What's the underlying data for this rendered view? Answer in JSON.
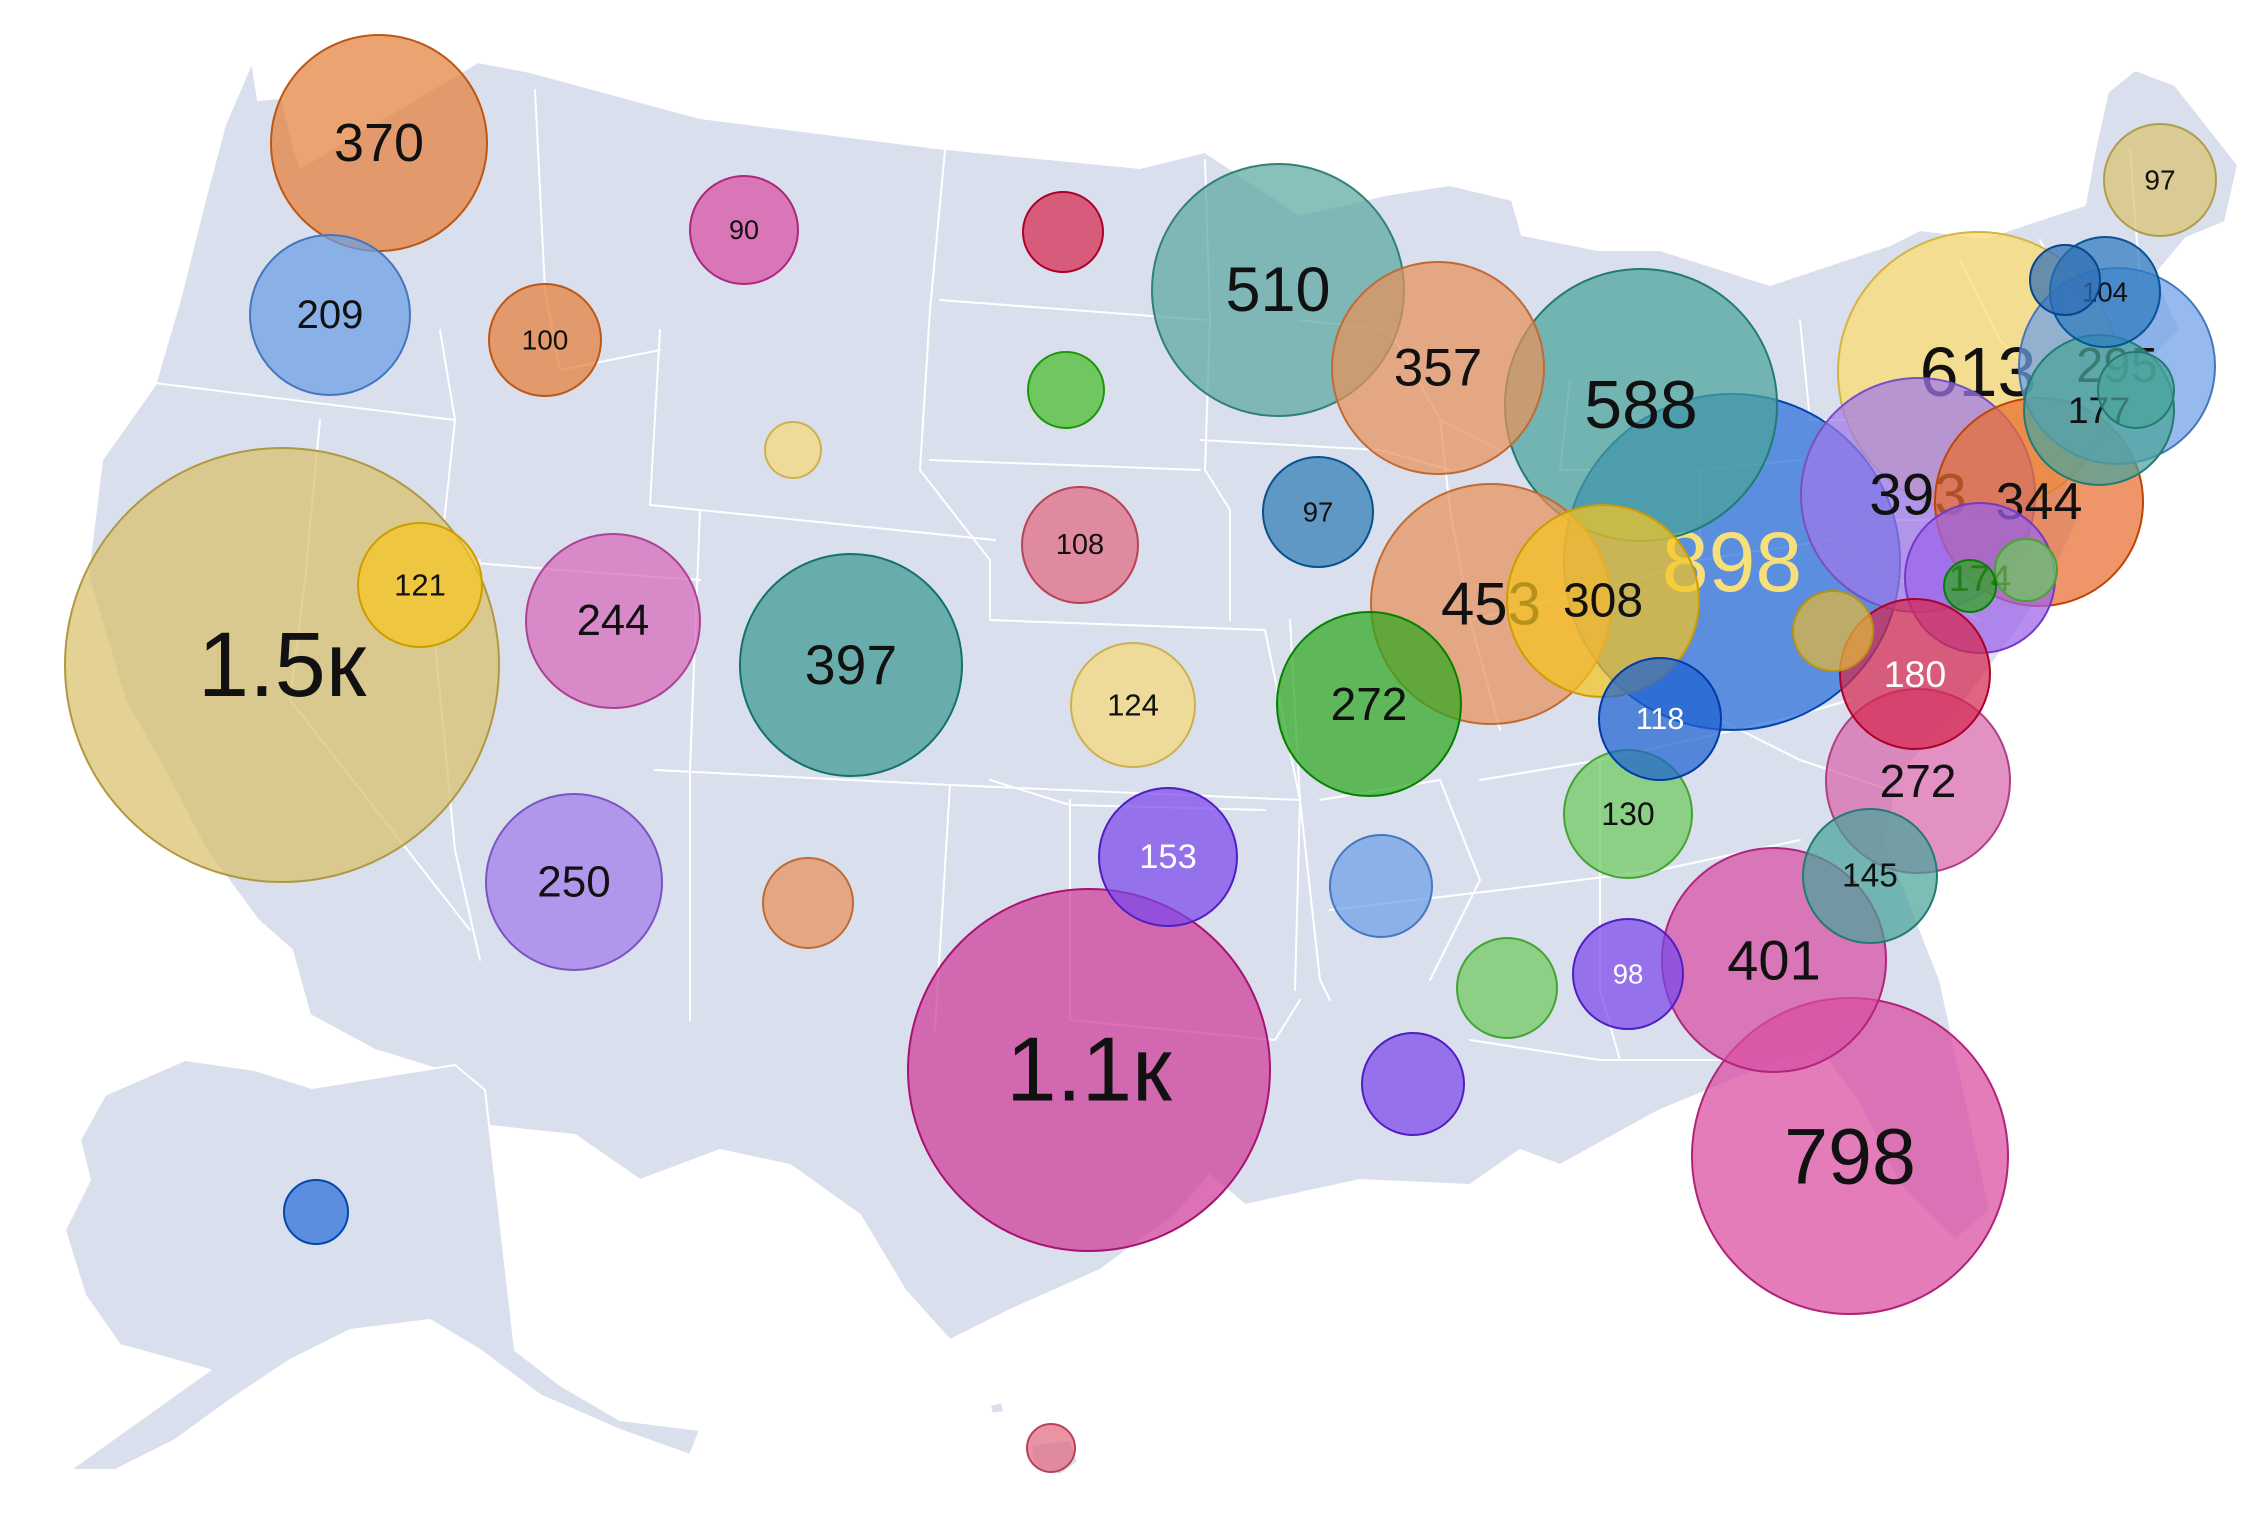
{
  "map": {
    "type": "proportional-symbol",
    "region": "United States",
    "basemap_color": "#d9dfec",
    "border_color": "#ffffff",
    "label_rule": "bubbles labeled only when large enough"
  },
  "bubbles": [
    {
      "state": "WA",
      "label": "370",
      "color": "#e57f3c"
    },
    {
      "state": "OR",
      "label": "209",
      "color": "#6b9ee6"
    },
    {
      "state": "ID",
      "label": "100",
      "color": "#e57f3c"
    },
    {
      "state": "MT",
      "label": "90",
      "color": "#d84ea4"
    },
    {
      "state": "ND",
      "label": "",
      "color": "#d6284f"
    },
    {
      "state": "MN",
      "label": "510",
      "color": "#5aa8a0"
    },
    {
      "state": "SD",
      "label": "",
      "color": "#46be2c"
    },
    {
      "state": "WY",
      "label": "",
      "color": "#f5d978"
    },
    {
      "state": "WI",
      "label": "357",
      "color": "#e8925c"
    },
    {
      "state": "MI",
      "label": "588",
      "color": "#4aa39a"
    },
    {
      "state": "ME",
      "label": "97",
      "color": "#d9c472"
    },
    {
      "state": "NY",
      "label": "613",
      "color": "#fbdc6e"
    },
    {
      "state": "VT",
      "label": "",
      "color": "#2f6fb6"
    },
    {
      "state": "NH",
      "label": "104",
      "color": "#2f7bbf"
    },
    {
      "state": "MA",
      "label": "295",
      "color": "#6d9fe6"
    },
    {
      "state": "CT",
      "label": "177",
      "color": "#4aa39a"
    },
    {
      "state": "RI",
      "label": "",
      "color": "#4aa39a"
    },
    {
      "state": "IA",
      "label": "97",
      "color": "#2f7bb5"
    },
    {
      "state": "NE",
      "label": "108",
      "color": "#e06a80"
    },
    {
      "state": "CA",
      "label": "1.5к",
      "color": "#d8c06a"
    },
    {
      "state": "NV",
      "label": "121",
      "color": "#f5c521"
    },
    {
      "state": "UT",
      "label": "244",
      "color": "#d66ab9"
    },
    {
      "state": "CO",
      "label": "397",
      "color": "#3c9a92"
    },
    {
      "state": "KS",
      "label": "124",
      "color": "#f5d978"
    },
    {
      "state": "IL",
      "label": "453",
      "color": "#e8925c"
    },
    {
      "state": "IN",
      "label": "308",
      "color": "#f5c521"
    },
    {
      "state": "OH",
      "label": "898",
      "color": "#2a6fd8"
    },
    {
      "state": "PA",
      "label": "393",
      "color": "#a078ea"
    },
    {
      "state": "NJ",
      "label": "344",
      "color": "#e86c30"
    },
    {
      "state": "DE",
      "label": "174",
      "color": "#9b62ea"
    },
    {
      "state": "MD",
      "label": "",
      "color": "#2ea820"
    },
    {
      "state": "DC",
      "label": "",
      "color": "#6ccb5c"
    },
    {
      "state": "WV",
      "label": "",
      "color": "#e2b93a"
    },
    {
      "state": "VA",
      "label": "180",
      "color": "#d6284f"
    },
    {
      "state": "MO",
      "label": "272",
      "color": "#2ea820"
    },
    {
      "state": "KY",
      "label": "118",
      "color": "#1e63d0"
    },
    {
      "state": "TN",
      "label": "130",
      "color": "#6ccb5c"
    },
    {
      "state": "NC",
      "label": "272",
      "color": "#d866ac"
    },
    {
      "state": "SC",
      "label": "145",
      "color": "#4aa39a"
    },
    {
      "state": "AZ",
      "label": "250",
      "color": "#a17cea"
    },
    {
      "state": "NM",
      "label": "",
      "color": "#e8925c"
    },
    {
      "state": "OK",
      "label": "153",
      "color": "#7a46ea"
    },
    {
      "state": "TX",
      "label": "1.1к",
      "color": "#cf3b98"
    },
    {
      "state": "AR",
      "label": "",
      "color": "#6d9fe6"
    },
    {
      "state": "MS",
      "label": "",
      "color": "#6ccb5c"
    },
    {
      "state": "AL",
      "label": "98",
      "color": "#7a46ea"
    },
    {
      "state": "GA",
      "label": "401",
      "color": "#d84ea4"
    },
    {
      "state": "LA",
      "label": "",
      "color": "#7a46ea"
    },
    {
      "state": "FL",
      "label": "798",
      "color": "#da4aa0"
    },
    {
      "state": "AK",
      "label": "",
      "color": "#2a6fd8"
    },
    {
      "state": "HI",
      "label": "",
      "color": "#e06a80"
    }
  ]
}
